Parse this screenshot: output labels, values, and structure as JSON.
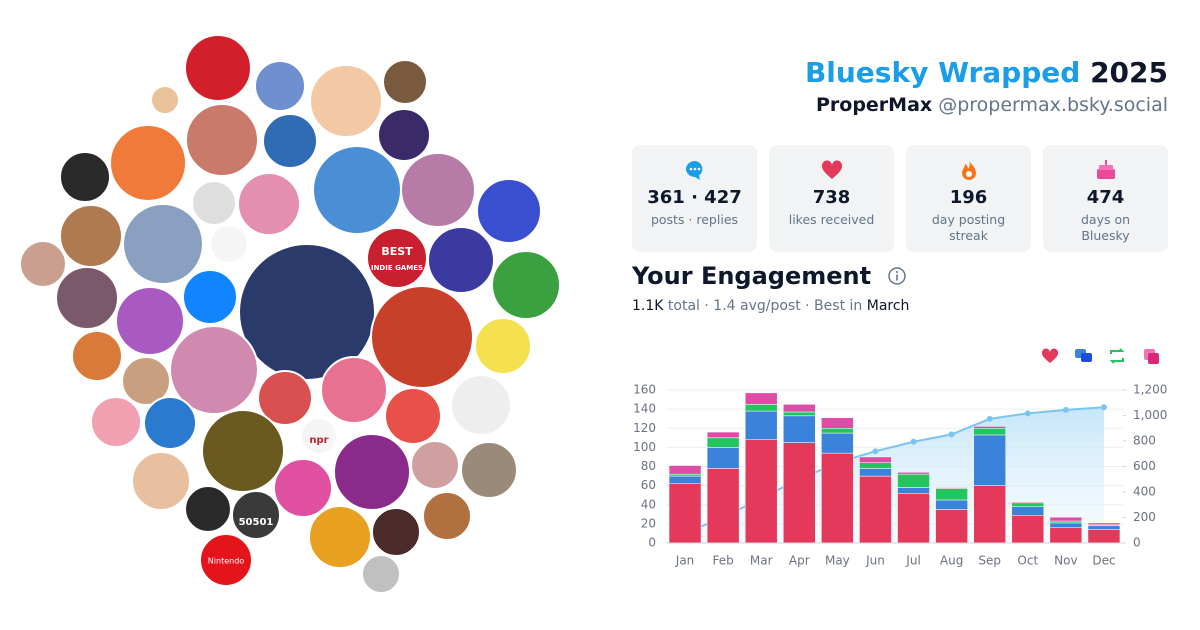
{
  "header": {
    "title_brand": "Bluesky Wrapped",
    "title_year": "2025",
    "display_name": "ProperMax",
    "handle": "@propermax.bsky.social"
  },
  "avatar_labels": [
    "BEST",
    "INDIE GAMES",
    "npr",
    "50501",
    "Nintendo"
  ],
  "stats": [
    {
      "value": "361 · 427",
      "label": "posts · replies"
    },
    {
      "value": 738,
      "label": "likes received"
    },
    {
      "value": 196,
      "label": "day posting streak"
    },
    {
      "value": 474,
      "label": "days on Bluesky"
    }
  ],
  "engagement": {
    "title": "Your Engagement",
    "summary": [
      "1.1K",
      "total ·",
      "1.4",
      "avg/post · Best in",
      "March"
    ]
  },
  "chart_data": {
    "type": "bar",
    "stacked": true,
    "grid": true,
    "categories": [
      "Jan",
      "Feb",
      "Mar",
      "Apr",
      "May",
      "Jun",
      "Jul",
      "Aug",
      "Sep",
      "Oct",
      "Nov",
      "Dec"
    ],
    "series": [
      {
        "color": "#e5395c",
        "values": [
          62,
          78,
          108,
          105,
          94,
          70,
          52,
          35,
          60,
          29,
          16,
          14
        ]
      },
      {
        "color": "#3b82db",
        "values": [
          8,
          22,
          30,
          28,
          21,
          8,
          6,
          10,
          53,
          9,
          5,
          4
        ]
      },
      {
        "color": "#22c55e",
        "values": [
          2,
          10,
          7,
          4,
          5,
          6,
          14,
          12,
          7,
          4,
          2,
          1
        ]
      },
      {
        "color": "#e04ba8",
        "values": [
          9,
          6,
          12,
          8,
          11,
          6,
          2,
          1,
          2,
          1,
          4,
          2
        ]
      },
      {
        "type": "area",
        "axis": "y2",
        "color": "#7cc4f0",
        "values": [
          81,
          197,
          354,
          499,
          630,
          720,
          794,
          852,
          974,
          1017,
          1044,
          1065
        ]
      }
    ],
    "ylim": [
      0,
      160
    ],
    "yticks": [
      0,
      20,
      40,
      60,
      80,
      100,
      120,
      140,
      160
    ],
    "y2lim": [
      0,
      1200
    ],
    "y2ticks": [
      0,
      200,
      400,
      600,
      800,
      {
        "value": 1000,
        "label": "1,000"
      },
      {
        "value": 1200,
        "label": "1,200"
      }
    ]
  }
}
